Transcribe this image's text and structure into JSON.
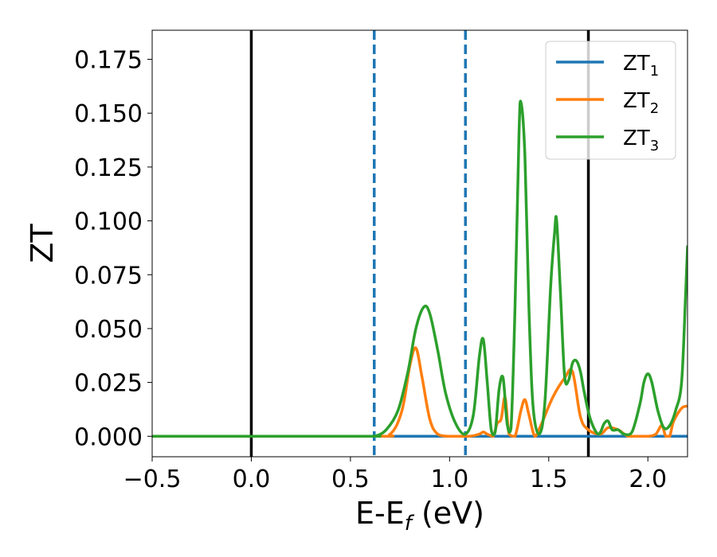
{
  "chart_data": {
    "type": "line",
    "title": "",
    "xlabel": "E-E",
    "xlabel_sub": "f",
    "xlabel_unit": " (eV)",
    "ylabel": "ZT",
    "xlim": [
      -0.5,
      2.2
    ],
    "ylim": [
      -0.0095,
      0.1885
    ],
    "grid": false,
    "legend_position": "top-right",
    "xticks": [
      -0.5,
      0.0,
      0.5,
      1.0,
      1.5,
      2.0
    ],
    "xtick_labels": [
      "−0.5",
      "0.0",
      "0.5",
      "1.0",
      "1.5",
      "2.0"
    ],
    "yticks": [
      0.0,
      0.025,
      0.05,
      0.075,
      0.1,
      0.125,
      0.15,
      0.175
    ],
    "ytick_labels": [
      "0.000",
      "0.025",
      "0.050",
      "0.075",
      "0.100",
      "0.125",
      "0.150",
      "0.175"
    ],
    "vertical_lines": [
      {
        "x": 0.0,
        "style": "solid",
        "color": "#000000"
      },
      {
        "x": 0.62,
        "style": "dashed",
        "color": "#1f77b4"
      },
      {
        "x": 1.08,
        "style": "dashed",
        "color": "#1f77b4"
      },
      {
        "x": 1.7,
        "style": "solid",
        "color": "#000000"
      }
    ],
    "series": [
      {
        "name": "ZT",
        "name_sub": "1",
        "color": "#1f77b4",
        "x": [
          -0.5,
          2.2
        ],
        "y": [
          0.0,
          0.0
        ]
      },
      {
        "name": "ZT",
        "name_sub": "2",
        "color": "#ff7f0e",
        "x": [
          -0.5,
          0.6,
          0.7,
          0.76,
          0.8,
          0.83,
          0.86,
          0.9,
          0.94,
          1.0,
          1.1,
          1.15,
          1.17,
          1.19,
          1.22,
          1.24,
          1.26,
          1.28,
          1.3,
          1.33,
          1.36,
          1.38,
          1.4,
          1.43,
          1.46,
          1.52,
          1.58,
          1.62,
          1.66,
          1.7,
          1.76,
          1.8,
          1.85,
          1.9,
          1.95,
          2.0,
          2.04,
          2.07,
          2.09,
          2.11,
          2.13,
          2.17,
          2.2
        ],
        "y": [
          0.0,
          0.0,
          0.001,
          0.012,
          0.033,
          0.041,
          0.028,
          0.008,
          0.001,
          0.0,
          0.0,
          0.001,
          0.002,
          0.001,
          0.0,
          0.006,
          0.008,
          0.018,
          0.001,
          0.0,
          0.012,
          0.017,
          0.01,
          0.0,
          0.005,
          0.018,
          0.027,
          0.03,
          0.009,
          0.003,
          0.001,
          0.004,
          0.003,
          0.0,
          0.0,
          0.0,
          0.001,
          0.005,
          0.0,
          0.0,
          0.007,
          0.013,
          0.014
        ]
      },
      {
        "name": "ZT",
        "name_sub": "3",
        "color": "#2ca02c",
        "x": [
          -0.5,
          0.55,
          0.62,
          0.68,
          0.74,
          0.79,
          0.83,
          0.87,
          0.9,
          0.94,
          0.98,
          1.03,
          1.08,
          1.12,
          1.15,
          1.17,
          1.19,
          1.21,
          1.23,
          1.25,
          1.27,
          1.29,
          1.31,
          1.33,
          1.35,
          1.36,
          1.38,
          1.4,
          1.42,
          1.45,
          1.48,
          1.51,
          1.53,
          1.54,
          1.56,
          1.58,
          1.6,
          1.62,
          1.64,
          1.66,
          1.68,
          1.71,
          1.75,
          1.78,
          1.8,
          1.82,
          1.85,
          1.88,
          1.92,
          1.96,
          1.98,
          2.0,
          2.02,
          2.05,
          2.08,
          2.11,
          2.14,
          2.17,
          2.19,
          2.2
        ],
        "y": [
          0.0,
          0.0,
          0.0,
          0.003,
          0.012,
          0.03,
          0.05,
          0.06,
          0.057,
          0.04,
          0.02,
          0.006,
          0.001,
          0.01,
          0.037,
          0.045,
          0.025,
          0.003,
          0.002,
          0.022,
          0.027,
          0.006,
          0.004,
          0.06,
          0.14,
          0.155,
          0.13,
          0.06,
          0.015,
          0.001,
          0.015,
          0.07,
          0.095,
          0.1,
          0.065,
          0.028,
          0.026,
          0.034,
          0.035,
          0.03,
          0.02,
          0.008,
          0.001,
          0.006,
          0.007,
          0.003,
          0.003,
          0.001,
          0.002,
          0.015,
          0.025,
          0.029,
          0.025,
          0.012,
          0.004,
          0.005,
          0.012,
          0.025,
          0.065,
          0.088
        ]
      }
    ]
  }
}
